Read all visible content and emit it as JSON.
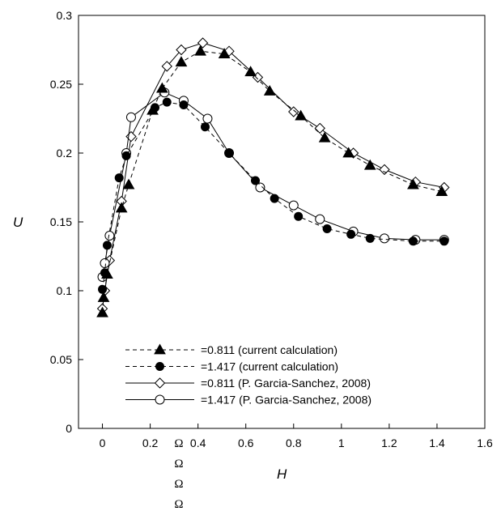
{
  "chart_data": {
    "type": "scatter",
    "xlabel": "H",
    "ylabel": "U",
    "xlim": [
      -0.1,
      1.6
    ],
    "ylim": [
      0,
      0.3
    ],
    "xticks": [
      "0",
      "0.2",
      "0.4",
      "0.6",
      "0.8",
      "1",
      "1.2",
      "1.4",
      "1.6"
    ],
    "yticks": [
      "0",
      "0.05",
      "0.1",
      "0.15",
      "0.2",
      "0.25",
      "0.3"
    ],
    "grid": false,
    "legend_position": "bottom-center",
    "omega_symbols": [
      "Ω",
      "Ω",
      "Ω",
      "Ω"
    ],
    "series": [
      {
        "name": "=0.811 (current calculation)",
        "marker": "filled-triangle",
        "line": "dashed",
        "x": [
          0,
          0.005,
          0.02,
          0.08,
          0.11,
          0.21,
          0.25,
          0.33,
          0.41,
          0.51,
          0.62,
          0.7,
          0.83,
          0.93,
          1.03,
          1.12,
          1.3,
          1.42
        ],
        "y": [
          0.084,
          0.095,
          0.112,
          0.16,
          0.177,
          0.231,
          0.247,
          0.266,
          0.274,
          0.272,
          0.259,
          0.245,
          0.227,
          0.211,
          0.2,
          0.191,
          0.177,
          0.172
        ]
      },
      {
        "name": "=1.417 (current calculation)",
        "marker": "filled-circle",
        "line": "dashed",
        "x": [
          0,
          0.01,
          0.02,
          0.07,
          0.1,
          0.22,
          0.27,
          0.34,
          0.43,
          0.53,
          0.64,
          0.72,
          0.82,
          0.94,
          1.04,
          1.12,
          1.3,
          1.43
        ],
        "y": [
          0.101,
          0.113,
          0.133,
          0.182,
          0.198,
          0.233,
          0.237,
          0.235,
          0.219,
          0.2,
          0.18,
          0.167,
          0.154,
          0.145,
          0.141,
          0.138,
          0.136,
          0.136
        ]
      },
      {
        "name": "=0.811 (P. Garcia-Sanchez, 2008)",
        "marker": "open-diamond",
        "line": "solid",
        "x": [
          0,
          0.01,
          0.03,
          0.08,
          0.12,
          0.27,
          0.33,
          0.42,
          0.53,
          0.65,
          0.8,
          0.91,
          1.05,
          1.18,
          1.31,
          1.43
        ],
        "y": [
          0.087,
          0.1,
          0.122,
          0.165,
          0.212,
          0.263,
          0.275,
          0.28,
          0.274,
          0.255,
          0.23,
          0.218,
          0.2,
          0.188,
          0.179,
          0.175
        ]
      },
      {
        "name": "=1.417 (P. Garcia-Sanchez, 2008)",
        "marker": "open-circle",
        "line": "solid",
        "x": [
          0,
          0.01,
          0.03,
          0.1,
          0.12,
          0.26,
          0.34,
          0.44,
          0.53,
          0.66,
          0.8,
          0.91,
          1.05,
          1.18,
          1.31,
          1.43
        ],
        "y": [
          0.11,
          0.12,
          0.14,
          0.2,
          0.226,
          0.244,
          0.238,
          0.225,
          0.2,
          0.175,
          0.162,
          0.152,
          0.143,
          0.138,
          0.137,
          0.137
        ]
      }
    ]
  }
}
